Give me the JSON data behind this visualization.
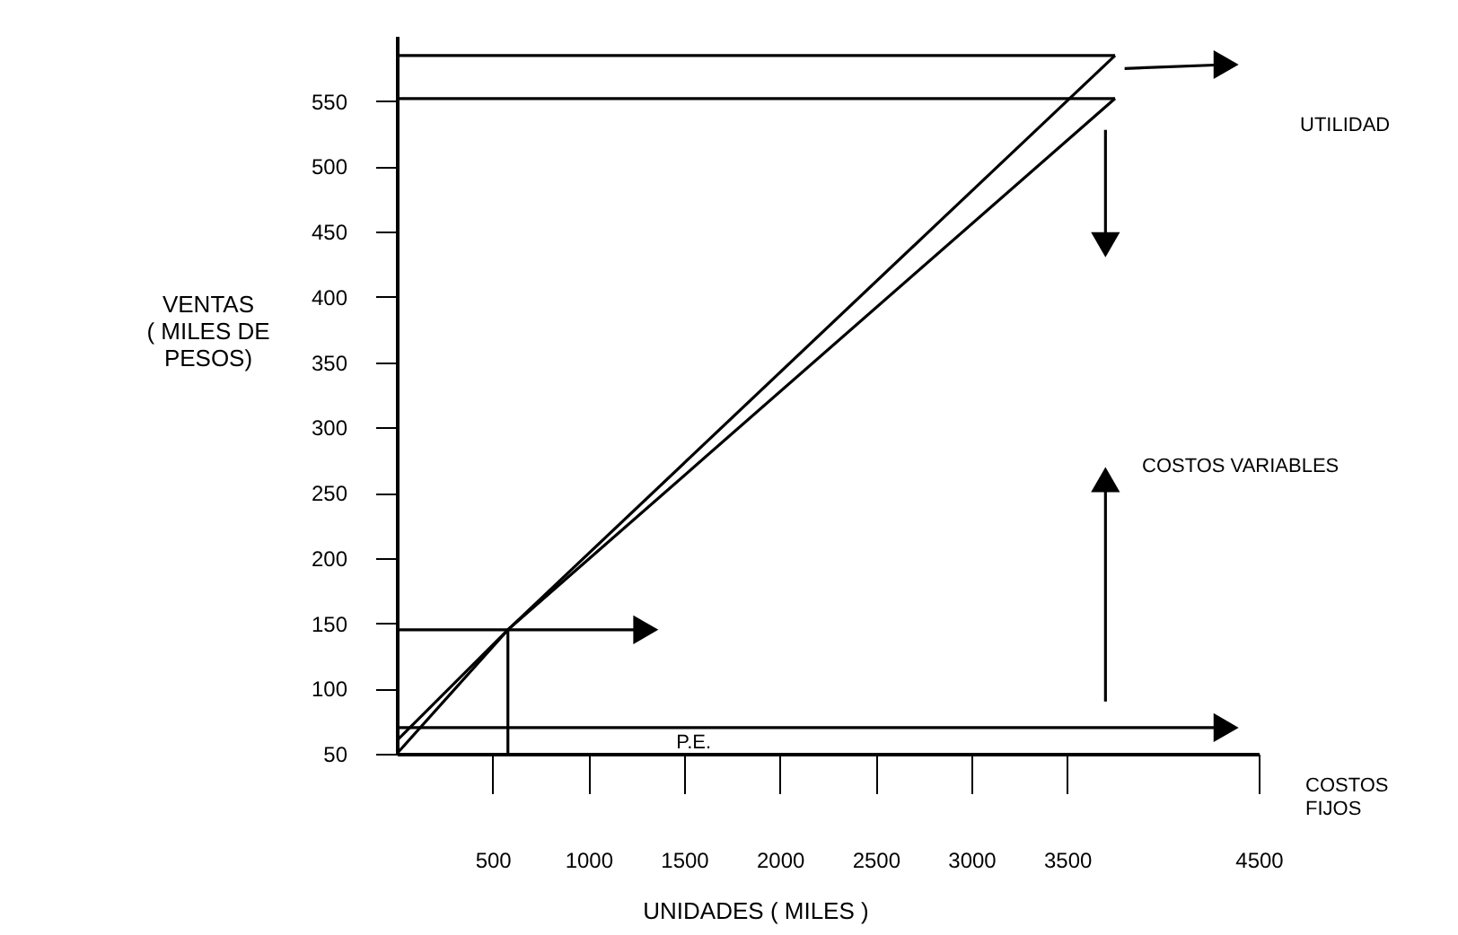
{
  "chart_data": {
    "type": "line",
    "xlabel": "UNIDADES ( MILES )",
    "ylabel": "VENTAS\n( MILES DE\nPESOS)",
    "xlim": [
      0,
      4500
    ],
    "ylim": [
      50,
      600
    ],
    "xticks": [
      500,
      1000,
      1500,
      2000,
      2500,
      3000,
      3500,
      4500
    ],
    "yticks": [
      50,
      100,
      150,
      200,
      250,
      300,
      350,
      400,
      450,
      500,
      550
    ],
    "grid": false,
    "line_style": "solid",
    "annotations": [
      "P.E.",
      "UTILIDAD",
      "COSTOS VARIABLES",
      "COSTOS\nFIJOS"
    ],
    "series": [
      {
        "color": "#000000",
        "x": [
          0,
          580,
          3750
        ],
        "values": [
          50,
          145,
          585
        ]
      },
      {
        "color": "#000000",
        "x": [
          0,
          580,
          3750
        ],
        "values": [
          60,
          145,
          552
        ]
      },
      {
        "color": "#000000",
        "x": [
          0,
          3750
        ],
        "values": [
          585,
          585
        ]
      },
      {
        "color": "#000000",
        "x": [
          0,
          3750
        ],
        "values": [
          552,
          552
        ]
      },
      {
        "color": "#000000",
        "x": [
          0,
          4330
        ],
        "values": [
          70,
          70
        ],
        "marker": "triangle"
      },
      {
        "color": "#000000",
        "x": [
          0,
          1300
        ],
        "values": [
          145,
          145
        ],
        "marker": "triangle"
      },
      {
        "color": "#000000",
        "x": [
          580,
          580
        ],
        "values": [
          50,
          145
        ]
      },
      {
        "color": "#000000",
        "x": [
          3800,
          4330
        ],
        "values": [
          575,
          578
        ],
        "marker": "triangle"
      },
      {
        "color": "#000000",
        "x": [
          3700,
          3700
        ],
        "values": [
          528,
          440
        ],
        "marker": "triangle"
      },
      {
        "color": "#000000",
        "x": [
          3700,
          3700
        ],
        "values": [
          90,
          260
        ],
        "marker": "triangle"
      }
    ]
  }
}
